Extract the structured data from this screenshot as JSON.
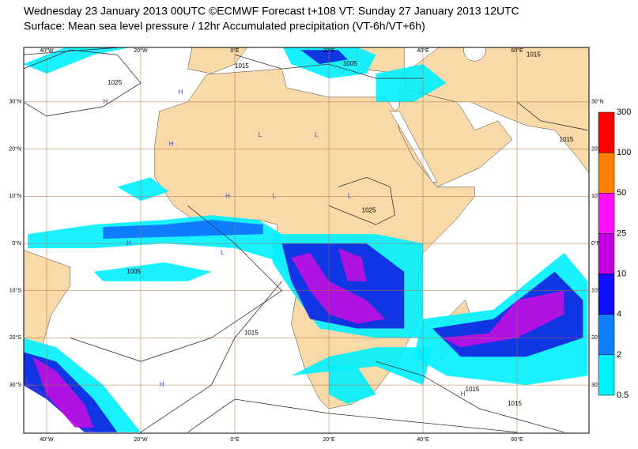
{
  "header": {
    "line1": "Wednesday 23 January 2013 00UTC ©ECMWF Forecast t+108 VT: Sunday 27 January 2013 12UTC",
    "line2": "Surface: Mean sea level pressure / 12hr Accumulated precipitation (VT-6h/VT+6h)"
  },
  "map": {
    "lon_labels": [
      "40°W",
      "20°W",
      "0°E",
      "20°E",
      "40°E",
      "60°E"
    ],
    "lat_labels": [
      "30°N",
      "20°N",
      "10°N",
      "0°N",
      "10°S",
      "20°S",
      "30°S"
    ],
    "isobar_labels": [
      "1025",
      "1015",
      "1005",
      "1025",
      "1015",
      "1015",
      "1005",
      "1015",
      "1015",
      "1015"
    ],
    "pressure_centers": [
      "H",
      "H",
      "L",
      "H",
      "L",
      "H",
      "L",
      "L",
      "H",
      "L",
      "H",
      "H"
    ]
  },
  "colorbar": {
    "levels": [
      "300",
      "100",
      "50",
      "25",
      "10",
      "4",
      "2",
      "0.5"
    ]
  }
}
